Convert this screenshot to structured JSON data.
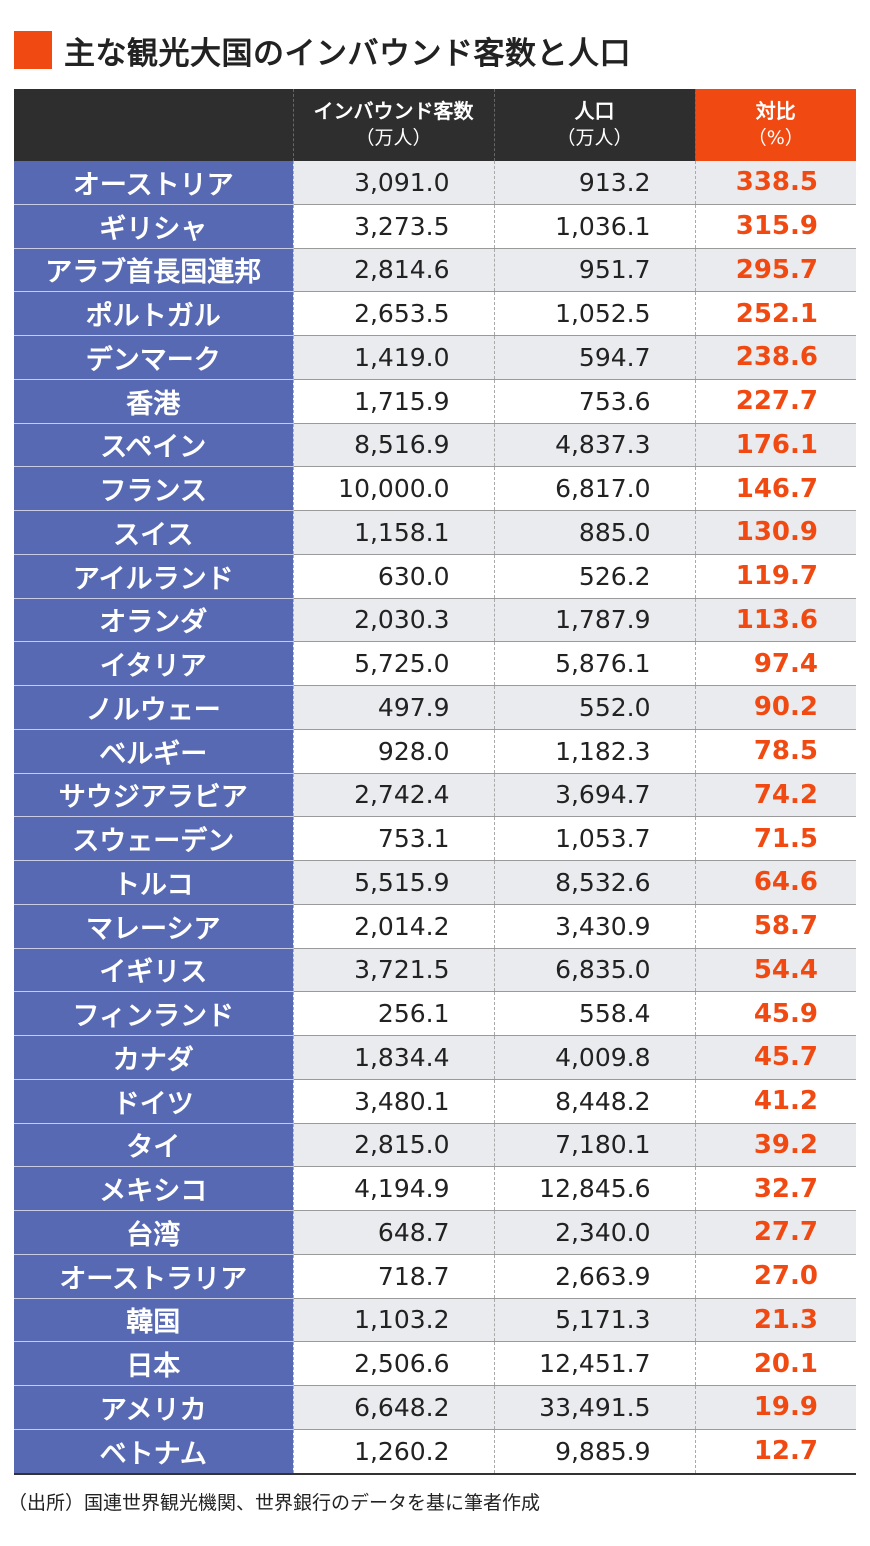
{
  "title": "主な観光大国のインバウンド客数と人口",
  "accent_color": "#f04a12",
  "country_cell_color": "#5769b3",
  "header_color": "#2e2e2e",
  "columns": {
    "inbound": {
      "label": "インバウンド客数",
      "unit": "（万人）"
    },
    "population": {
      "label": "人口",
      "unit": "（万人）"
    },
    "ratio": {
      "label": "対比",
      "unit": "（%）"
    }
  },
  "rows": [
    {
      "country": "オーストリア",
      "inbound": "3,091.0",
      "population": "913.2",
      "ratio": "338.5"
    },
    {
      "country": "ギリシャ",
      "inbound": "3,273.5",
      "population": "1,036.1",
      "ratio": "315.9"
    },
    {
      "country": "アラブ首長国連邦",
      "inbound": "2,814.6",
      "population": "951.7",
      "ratio": "295.7"
    },
    {
      "country": "ポルトガル",
      "inbound": "2,653.5",
      "population": "1,052.5",
      "ratio": "252.1"
    },
    {
      "country": "デンマーク",
      "inbound": "1,419.0",
      "population": "594.7",
      "ratio": "238.6"
    },
    {
      "country": "香港",
      "inbound": "1,715.9",
      "population": "753.6",
      "ratio": "227.7"
    },
    {
      "country": "スペイン",
      "inbound": "8,516.9",
      "population": "4,837.3",
      "ratio": "176.1"
    },
    {
      "country": "フランス",
      "inbound": "10,000.0",
      "population": "6,817.0",
      "ratio": "146.7"
    },
    {
      "country": "スイス",
      "inbound": "1,158.1",
      "population": "885.0",
      "ratio": "130.9"
    },
    {
      "country": "アイルランド",
      "inbound": "630.0",
      "population": "526.2",
      "ratio": "119.7"
    },
    {
      "country": "オランダ",
      "inbound": "2,030.3",
      "population": "1,787.9",
      "ratio": "113.6"
    },
    {
      "country": "イタリア",
      "inbound": "5,725.0",
      "population": "5,876.1",
      "ratio": "97.4"
    },
    {
      "country": "ノルウェー",
      "inbound": "497.9",
      "population": "552.0",
      "ratio": "90.2"
    },
    {
      "country": "ベルギー",
      "inbound": "928.0",
      "population": "1,182.3",
      "ratio": "78.5"
    },
    {
      "country": "サウジアラビア",
      "inbound": "2,742.4",
      "population": "3,694.7",
      "ratio": "74.2"
    },
    {
      "country": "スウェーデン",
      "inbound": "753.1",
      "population": "1,053.7",
      "ratio": "71.5"
    },
    {
      "country": "トルコ",
      "inbound": "5,515.9",
      "population": "8,532.6",
      "ratio": "64.6"
    },
    {
      "country": "マレーシア",
      "inbound": "2,014.2",
      "population": "3,430.9",
      "ratio": "58.7"
    },
    {
      "country": "イギリス",
      "inbound": "3,721.5",
      "population": "6,835.0",
      "ratio": "54.4"
    },
    {
      "country": "フィンランド",
      "inbound": "256.1",
      "population": "558.4",
      "ratio": "45.9"
    },
    {
      "country": "カナダ",
      "inbound": "1,834.4",
      "population": "4,009.8",
      "ratio": "45.7"
    },
    {
      "country": "ドイツ",
      "inbound": "3,480.1",
      "population": "8,448.2",
      "ratio": "41.2"
    },
    {
      "country": "タイ",
      "inbound": "2,815.0",
      "population": "7,180.1",
      "ratio": "39.2"
    },
    {
      "country": "メキシコ",
      "inbound": "4,194.9",
      "population": "12,845.6",
      "ratio": "32.7"
    },
    {
      "country": "台湾",
      "inbound": "648.7",
      "population": "2,340.0",
      "ratio": "27.7"
    },
    {
      "country": "オーストラリア",
      "inbound": "718.7",
      "population": "2,663.9",
      "ratio": "27.0"
    },
    {
      "country": "韓国",
      "inbound": "1,103.2",
      "population": "5,171.3",
      "ratio": "21.3"
    },
    {
      "country": "日本",
      "inbound": "2,506.6",
      "population": "12,451.7",
      "ratio": "20.1"
    },
    {
      "country": "アメリカ",
      "inbound": "6,648.2",
      "population": "33,491.5",
      "ratio": "19.9"
    },
    {
      "country": "ベトナム",
      "inbound": "1,260.2",
      "population": "9,885.9",
      "ratio": "12.7"
    }
  ],
  "source": "（出所）国連世界観光機関、世界銀行のデータを基に筆者作成"
}
